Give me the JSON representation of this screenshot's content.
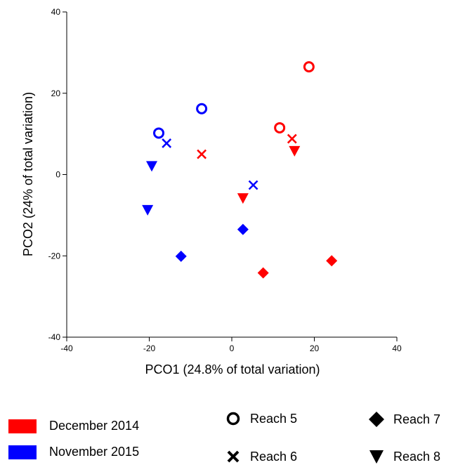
{
  "chart_data": {
    "type": "scatter",
    "title": "",
    "xlabel": "PCO1 (24.8% of total variation)",
    "ylabel": "PCO2 (24% of total variation)",
    "xlim": [
      -40,
      40
    ],
    "ylim": [
      -40,
      40
    ],
    "xticks": [
      -40,
      -20,
      0,
      20,
      40
    ],
    "yticks": [
      -40,
      -20,
      0,
      20,
      40
    ],
    "grid": false,
    "legend_position": "bottom",
    "colors": {
      "December 2014": "#ff0000",
      "November 2015": "#0000ff"
    },
    "series": [
      {
        "name": "December 2014",
        "color": "#ff0000",
        "points": [
          {
            "x": 18.7,
            "y": 26.5,
            "marker": "circle"
          },
          {
            "x": 11.6,
            "y": 11.5,
            "marker": "circle"
          },
          {
            "x": -7.3,
            "y": 5.0,
            "marker": "x"
          },
          {
            "x": 14.6,
            "y": 8.8,
            "marker": "x"
          },
          {
            "x": 15.2,
            "y": 5.8,
            "marker": "triangle-down"
          },
          {
            "x": 2.7,
            "y": -5.8,
            "marker": "triangle-down"
          },
          {
            "x": 7.6,
            "y": -24.2,
            "marker": "diamond"
          },
          {
            "x": 24.2,
            "y": -21.2,
            "marker": "diamond"
          }
        ]
      },
      {
        "name": "November 2015",
        "color": "#0000ff",
        "points": [
          {
            "x": -7.3,
            "y": 16.2,
            "marker": "circle"
          },
          {
            "x": -17.7,
            "y": 10.2,
            "marker": "circle"
          },
          {
            "x": -15.8,
            "y": 7.7,
            "marker": "x"
          },
          {
            "x": 5.2,
            "y": -2.6,
            "marker": "x"
          },
          {
            "x": -19.4,
            "y": 2.1,
            "marker": "triangle-down"
          },
          {
            "x": -20.4,
            "y": -8.7,
            "marker": "triangle-down"
          },
          {
            "x": 2.7,
            "y": -13.5,
            "marker": "diamond"
          },
          {
            "x": -12.3,
            "y": -20.1,
            "marker": "diamond"
          }
        ]
      }
    ]
  },
  "legend": {
    "colors": [
      {
        "label": "December 2014",
        "color": "#ff0000"
      },
      {
        "label": "November 2015",
        "color": "#0000ff"
      }
    ],
    "shapes": [
      {
        "label": "Reach 5",
        "marker": "circle"
      },
      {
        "label": "Reach 6",
        "marker": "x"
      },
      {
        "label": "Reach 7",
        "marker": "diamond"
      },
      {
        "label": "Reach 8",
        "marker": "triangle-down"
      }
    ]
  }
}
